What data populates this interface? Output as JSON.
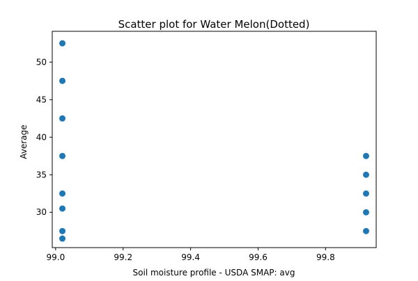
{
  "chart_data": {
    "type": "scatter",
    "title": "Scatter plot for Water Melon(Dotted)",
    "xlabel": "Soil moisture profile - USDA SMAP: avg",
    "ylabel": "Average",
    "xlim": [
      98.99,
      99.95
    ],
    "ylim": [
      25.3,
      54.1
    ],
    "xticks": [
      99.0,
      99.2,
      99.4,
      99.6,
      99.8
    ],
    "xtick_labels": [
      "99.0",
      "99.2",
      "99.4",
      "99.6",
      "99.8"
    ],
    "yticks": [
      30,
      35,
      40,
      45,
      50
    ],
    "ytick_labels": [
      "30",
      "35",
      "40",
      "45",
      "50"
    ],
    "grid": false,
    "legend": null,
    "marker_color": "#1f77b4",
    "points": [
      {
        "x": 99.02,
        "y": 52.5
      },
      {
        "x": 99.02,
        "y": 47.5
      },
      {
        "x": 99.02,
        "y": 42.5
      },
      {
        "x": 99.02,
        "y": 37.5
      },
      {
        "x": 99.02,
        "y": 32.5
      },
      {
        "x": 99.02,
        "y": 30.5
      },
      {
        "x": 99.02,
        "y": 27.5
      },
      {
        "x": 99.02,
        "y": 26.5
      },
      {
        "x": 99.92,
        "y": 37.5
      },
      {
        "x": 99.92,
        "y": 35.0
      },
      {
        "x": 99.92,
        "y": 32.5
      },
      {
        "x": 99.92,
        "y": 30.0
      },
      {
        "x": 99.92,
        "y": 27.5
      }
    ]
  }
}
